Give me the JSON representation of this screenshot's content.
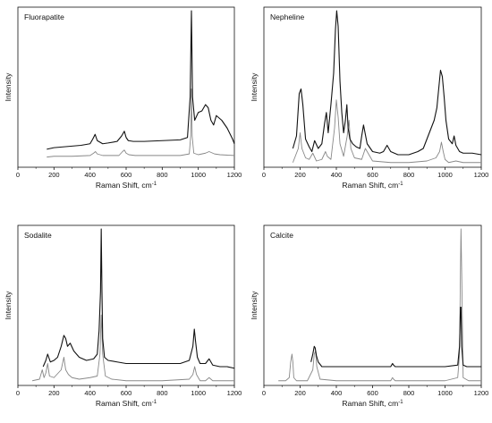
{
  "chart_data": [
    {
      "type": "line",
      "title": "Fluorapatite",
      "xlabel": "Raman Shift, cm",
      "xlabel_sup": "-1",
      "ylabel": "Intensity",
      "xlim": [
        0,
        1200
      ],
      "xticks": [
        0,
        200,
        400,
        600,
        800,
        1000,
        1200
      ],
      "ylim": [
        0,
        1
      ],
      "series": [
        {
          "color": "#111111",
          "x": [
            160,
            200,
            250,
            300,
            350,
            400,
            415,
            428,
            440,
            470,
            500,
            550,
            575,
            590,
            600,
            612,
            640,
            700,
            800,
            900,
            940,
            955,
            962,
            968,
            980,
            1000,
            1020,
            1040,
            1055,
            1070,
            1085,
            1100,
            1130,
            1160,
            1190,
            1200
          ],
          "y": [
            0.115,
            0.125,
            0.13,
            0.135,
            0.14,
            0.15,
            0.18,
            0.21,
            0.17,
            0.15,
            0.155,
            0.165,
            0.2,
            0.23,
            0.19,
            0.17,
            0.165,
            0.165,
            0.17,
            0.175,
            0.19,
            0.45,
            1.0,
            0.45,
            0.3,
            0.35,
            0.36,
            0.4,
            0.38,
            0.3,
            0.27,
            0.33,
            0.3,
            0.25,
            0.18,
            0.15
          ]
        },
        {
          "color": "#888888",
          "x": [
            160,
            200,
            300,
            400,
            420,
            430,
            440,
            470,
            560,
            580,
            590,
            600,
            615,
            650,
            800,
            900,
            950,
            958,
            962,
            966,
            975,
            1000,
            1040,
            1060,
            1090,
            1120,
            1200
          ],
          "y": [
            0.065,
            0.07,
            0.07,
            0.075,
            0.09,
            0.1,
            0.085,
            0.075,
            0.075,
            0.1,
            0.11,
            0.09,
            0.08,
            0.075,
            0.075,
            0.075,
            0.085,
            0.2,
            0.5,
            0.2,
            0.09,
            0.08,
            0.09,
            0.1,
            0.085,
            0.08,
            0.075
          ]
        }
      ]
    },
    {
      "type": "line",
      "title": "Nepheline",
      "xlabel": "Raman Shift, cm",
      "xlabel_sup": "-1",
      "ylabel": "Intensity",
      "xlim": [
        0,
        1200
      ],
      "xticks": [
        0,
        200,
        400,
        600,
        800,
        1000,
        1200
      ],
      "ylim": [
        0,
        1
      ],
      "series": [
        {
          "color": "#111111",
          "x": [
            160,
            180,
            195,
            205,
            215,
            230,
            250,
            265,
            280,
            300,
            320,
            335,
            345,
            355,
            370,
            385,
            395,
            402,
            410,
            420,
            430,
            440,
            450,
            458,
            465,
            475,
            490,
            510,
            530,
            540,
            550,
            570,
            600,
            640,
            660,
            680,
            700,
            740,
            800,
            850,
            880,
            900,
            920,
            940,
            955,
            965,
            975,
            985,
            995,
            1005,
            1020,
            1040,
            1050,
            1060,
            1080,
            1100,
            1150,
            1200
          ],
          "y": [
            0.12,
            0.2,
            0.47,
            0.5,
            0.4,
            0.18,
            0.13,
            0.1,
            0.17,
            0.12,
            0.15,
            0.28,
            0.35,
            0.22,
            0.4,
            0.6,
            0.88,
            1.0,
            0.9,
            0.55,
            0.35,
            0.22,
            0.3,
            0.4,
            0.25,
            0.18,
            0.15,
            0.13,
            0.12,
            0.2,
            0.27,
            0.15,
            0.1,
            0.09,
            0.1,
            0.14,
            0.1,
            0.08,
            0.08,
            0.1,
            0.12,
            0.18,
            0.24,
            0.3,
            0.38,
            0.5,
            0.62,
            0.58,
            0.45,
            0.3,
            0.18,
            0.15,
            0.2,
            0.14,
            0.1,
            0.09,
            0.09,
            0.08
          ]
        },
        {
          "color": "#888888",
          "x": [
            160,
            190,
            200,
            210,
            230,
            250,
            270,
            290,
            320,
            340,
            350,
            370,
            390,
            400,
            410,
            420,
            440,
            460,
            470,
            480,
            500,
            540,
            560,
            600,
            700,
            800,
            900,
            950,
            970,
            980,
            990,
            1000,
            1020,
            1060,
            1100,
            1150,
            1200
          ],
          "y": [
            0.03,
            0.12,
            0.22,
            0.12,
            0.06,
            0.05,
            0.09,
            0.04,
            0.05,
            0.1,
            0.07,
            0.05,
            0.25,
            0.43,
            0.32,
            0.15,
            0.07,
            0.2,
            0.3,
            0.12,
            0.06,
            0.05,
            0.12,
            0.04,
            0.03,
            0.03,
            0.04,
            0.06,
            0.1,
            0.16,
            0.1,
            0.05,
            0.03,
            0.04,
            0.03,
            0.03,
            0.03
          ]
        }
      ]
    },
    {
      "type": "line",
      "title": "Sodalite",
      "xlabel": "Raman Shift, cm",
      "xlabel_sup": "-1",
      "ylabel": "Intensity",
      "xlim": [
        0,
        1200
      ],
      "xticks": [
        0,
        200,
        400,
        600,
        800,
        1000,
        1200
      ],
      "ylim": [
        0,
        1
      ],
      "series": [
        {
          "color": "#111111",
          "x": [
            140,
            155,
            165,
            180,
            200,
            220,
            240,
            255,
            265,
            275,
            290,
            310,
            340,
            380,
            420,
            440,
            450,
            458,
            462,
            466,
            470,
            480,
            500,
            550,
            600,
            700,
            800,
            900,
            950,
            970,
            978,
            985,
            995,
            1010,
            1040,
            1060,
            1080,
            1120,
            1160,
            1200
          ],
          "y": [
            0.12,
            0.16,
            0.2,
            0.15,
            0.16,
            0.18,
            0.25,
            0.32,
            0.3,
            0.25,
            0.27,
            0.22,
            0.18,
            0.16,
            0.17,
            0.2,
            0.35,
            0.6,
            1.0,
            0.6,
            0.3,
            0.18,
            0.16,
            0.15,
            0.14,
            0.14,
            0.14,
            0.14,
            0.16,
            0.25,
            0.36,
            0.28,
            0.18,
            0.14,
            0.14,
            0.17,
            0.13,
            0.12,
            0.12,
            0.11
          ]
        },
        {
          "color": "#888888",
          "x": [
            80,
            120,
            135,
            145,
            155,
            165,
            175,
            200,
            240,
            255,
            265,
            280,
            300,
            340,
            400,
            440,
            455,
            462,
            470,
            485,
            520,
            600,
            800,
            950,
            970,
            980,
            990,
            1010,
            1040,
            1060,
            1080,
            1120,
            1200
          ],
          "y": [
            0.03,
            0.04,
            0.1,
            0.05,
            0.08,
            0.14,
            0.06,
            0.05,
            0.1,
            0.18,
            0.1,
            0.07,
            0.05,
            0.04,
            0.05,
            0.06,
            0.2,
            0.45,
            0.2,
            0.06,
            0.04,
            0.03,
            0.03,
            0.04,
            0.07,
            0.12,
            0.07,
            0.03,
            0.03,
            0.05,
            0.03,
            0.03,
            0.03
          ]
        }
      ]
    },
    {
      "type": "line",
      "title": "Calcite",
      "xlabel": "Raman Shift, cm",
      "xlabel_sup": "-1",
      "ylabel": "Intensity",
      "xlim": [
        0,
        1200
      ],
      "xticks": [
        0,
        200,
        400,
        600,
        800,
        1000,
        1200
      ],
      "ylim": [
        0,
        1
      ],
      "series": [
        {
          "color": "#111111",
          "x": [
            260,
            270,
            278,
            283,
            290,
            300,
            320,
            400,
            600,
            700,
            710,
            716,
            725,
            800,
            1000,
            1070,
            1080,
            1085,
            1088,
            1092,
            1100,
            1120,
            1200
          ],
          "y": [
            0.15,
            0.2,
            0.25,
            0.24,
            0.19,
            0.15,
            0.12,
            0.12,
            0.12,
            0.12,
            0.14,
            0.13,
            0.12,
            0.12,
            0.12,
            0.13,
            0.25,
            0.5,
            0.5,
            0.25,
            0.13,
            0.12,
            0.12
          ]
        },
        {
          "color": "#888888",
          "x": [
            80,
            120,
            140,
            148,
            155,
            160,
            165,
            180,
            240,
            270,
            278,
            285,
            292,
            310,
            400,
            600,
            700,
            710,
            716,
            725,
            800,
            1000,
            1070,
            1080,
            1085,
            1088,
            1092,
            1100,
            1130,
            1200
          ],
          "y": [
            0.03,
            0.03,
            0.05,
            0.15,
            0.2,
            0.15,
            0.05,
            0.03,
            0.03,
            0.1,
            0.2,
            0.22,
            0.12,
            0.04,
            0.03,
            0.03,
            0.03,
            0.05,
            0.04,
            0.03,
            0.03,
            0.03,
            0.05,
            0.2,
            0.72,
            1.0,
            0.72,
            0.05,
            0.03,
            0.03
          ]
        }
      ]
    }
  ]
}
